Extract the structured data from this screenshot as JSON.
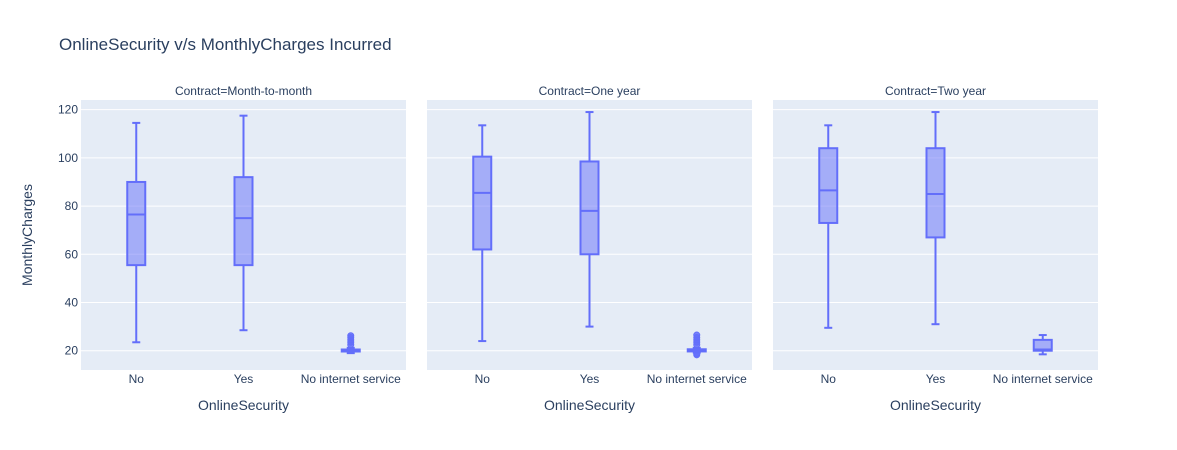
{
  "chart_data": {
    "type": "box",
    "title": "OnlineSecurity v/s MonthlyCharges Incurred",
    "xlabel": "OnlineSecurity",
    "ylabel": "MonthlyCharges",
    "ylim": [
      12,
      124
    ],
    "yticks": [
      20,
      40,
      60,
      80,
      100,
      120
    ],
    "categories": [
      "No",
      "Yes",
      "No internet service"
    ],
    "colors": {
      "plot_bg": "#e5ecf6",
      "box_line": "#636efa",
      "box_fill": "rgba(99,110,250,0.5)",
      "grid": "#ffffff",
      "text": "#2a3f5f"
    },
    "facets": [
      {
        "title": "Contract=Month-to-month",
        "boxes": [
          {
            "category": "No",
            "min": 23.5,
            "q1": 55.5,
            "median": 76.5,
            "q3": 90.0,
            "max": 114.5,
            "outliers": []
          },
          {
            "category": "Yes",
            "min": 28.5,
            "q1": 55.5,
            "median": 75.0,
            "q3": 92.0,
            "max": 117.5,
            "outliers": []
          },
          {
            "category": "No internet service",
            "min": 19.0,
            "q1": 19.8,
            "median": 20.1,
            "q3": 20.5,
            "max": 21.2,
            "outliers": [
              22.5,
              23.5,
              24.5,
              25.5,
              26.2
            ]
          }
        ]
      },
      {
        "title": "Contract=One year",
        "boxes": [
          {
            "category": "No",
            "min": 24.0,
            "q1": 62.0,
            "median": 85.5,
            "q3": 100.5,
            "max": 113.5,
            "outliers": []
          },
          {
            "category": "Yes",
            "min": 30.0,
            "q1": 60.0,
            "median": 78.0,
            "q3": 98.5,
            "max": 119.0,
            "outliers": []
          },
          {
            "category": "No internet service",
            "min": 19.2,
            "q1": 19.7,
            "median": 20.0,
            "q3": 20.6,
            "max": 21.2,
            "outliers": [
              18.3,
              18.8,
              22.5,
              23.5,
              24.5,
              25.5,
              26.5
            ]
          }
        ]
      },
      {
        "title": "Contract=Two year",
        "boxes": [
          {
            "category": "No",
            "min": 29.5,
            "q1": 73.0,
            "median": 86.5,
            "q3": 104.0,
            "max": 113.5,
            "outliers": []
          },
          {
            "category": "Yes",
            "min": 31.0,
            "q1": 67.0,
            "median": 85.0,
            "q3": 104.0,
            "max": 119.0,
            "outliers": []
          },
          {
            "category": "No internet service",
            "min": 18.5,
            "q1": 20.0,
            "median": 20.5,
            "q3": 24.5,
            "max": 26.5,
            "outliers": []
          }
        ]
      }
    ]
  }
}
